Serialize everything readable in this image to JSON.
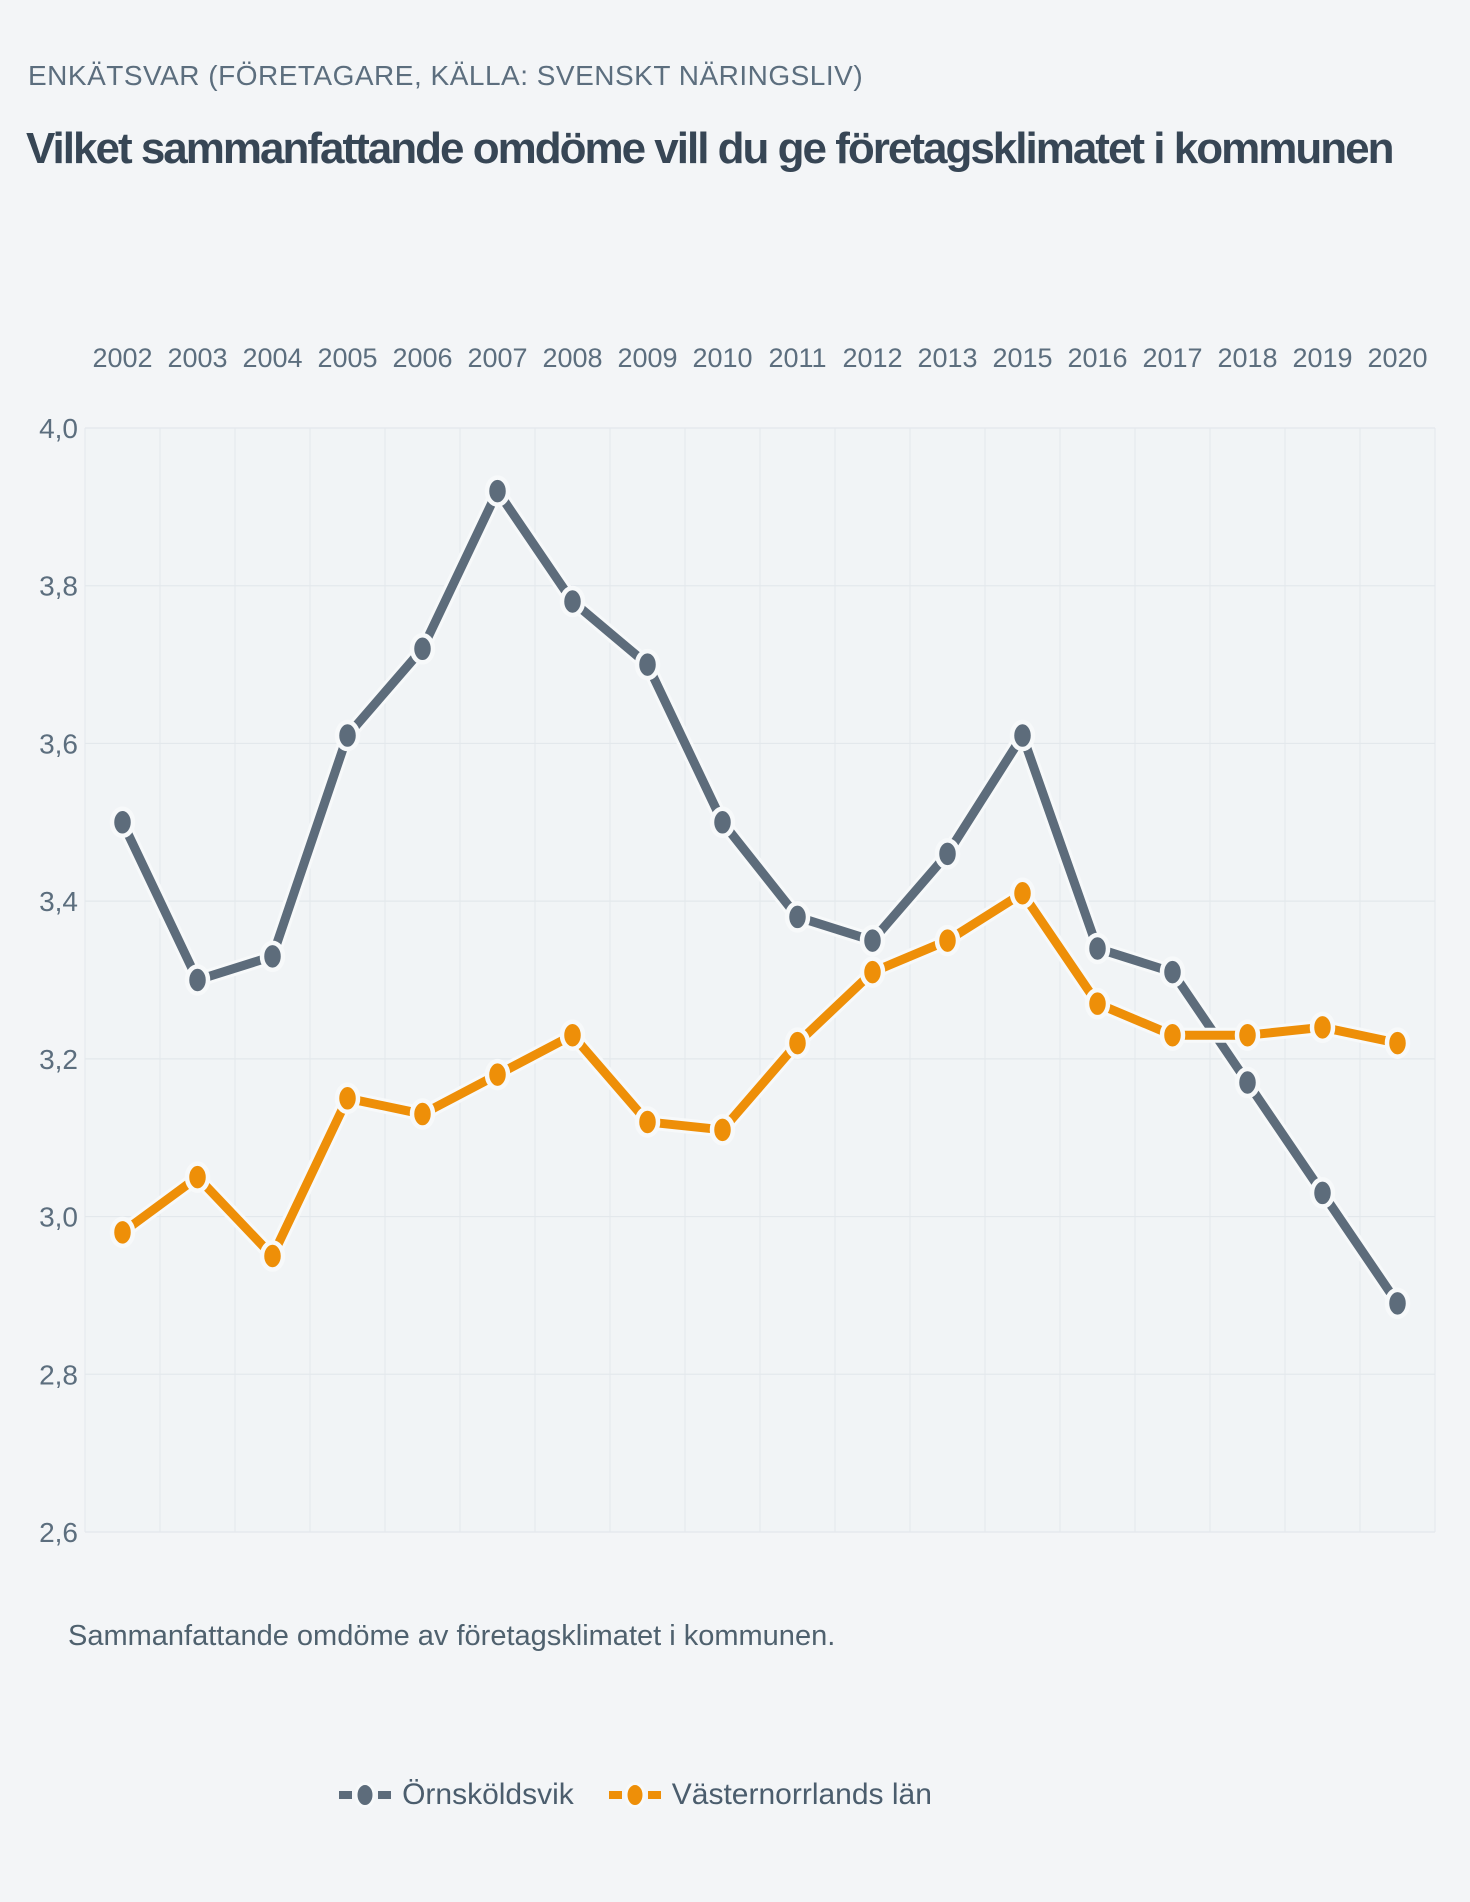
{
  "page": {
    "background_color": "#f3f5f7",
    "plot_background_color": "#f1f4f6",
    "gridline_color": "#e3e8ec",
    "axis_text_color": "#5c6e7e"
  },
  "header": {
    "eyebrow": "ENKÄTSVAR (FÖRETAGARE, KÄLLA: SVENSKT NÄRINGSLIV)",
    "title": "Vilket sammanfattande omdöme vill du ge företagsklimatet i kommunen"
  },
  "caption": "Sammanfattande omdöme av företagsklimatet i kommunen.",
  "chart_data": {
    "type": "line",
    "title": "Vilket sammanfattande omdöme vill du ge företagsklimatet i kommunen",
    "categories": [
      "2002",
      "2003",
      "2004",
      "2005",
      "2006",
      "2007",
      "2008",
      "2009",
      "2010",
      "2011",
      "2012",
      "2013",
      "2015",
      "2016",
      "2017",
      "2018",
      "2019",
      "2020"
    ],
    "series": [
      {
        "name": "Örnsköldsvik",
        "color": "#5d6c7b",
        "values": [
          3.5,
          3.3,
          3.33,
          3.61,
          3.72,
          3.92,
          3.78,
          3.7,
          3.5,
          3.38,
          3.35,
          3.46,
          3.61,
          3.34,
          3.31,
          3.17,
          3.03,
          2.89
        ]
      },
      {
        "name": "Västernorrlands län",
        "color": "#ee8f08",
        "values": [
          2.98,
          3.05,
          2.95,
          3.15,
          3.13,
          3.18,
          3.23,
          3.12,
          3.11,
          3.22,
          3.31,
          3.35,
          3.41,
          3.27,
          3.23,
          3.23,
          3.24,
          3.22
        ]
      }
    ],
    "ylim": [
      2.6,
      4.0
    ],
    "yticks": [
      4.0,
      3.8,
      3.6,
      3.4,
      3.2,
      3.0,
      2.8,
      2.6
    ],
    "ytick_label_format": "decimal-comma",
    "xlabel": "",
    "ylabel": "",
    "x_axis_position": "top",
    "grid": true,
    "legend_position": "bottom"
  }
}
